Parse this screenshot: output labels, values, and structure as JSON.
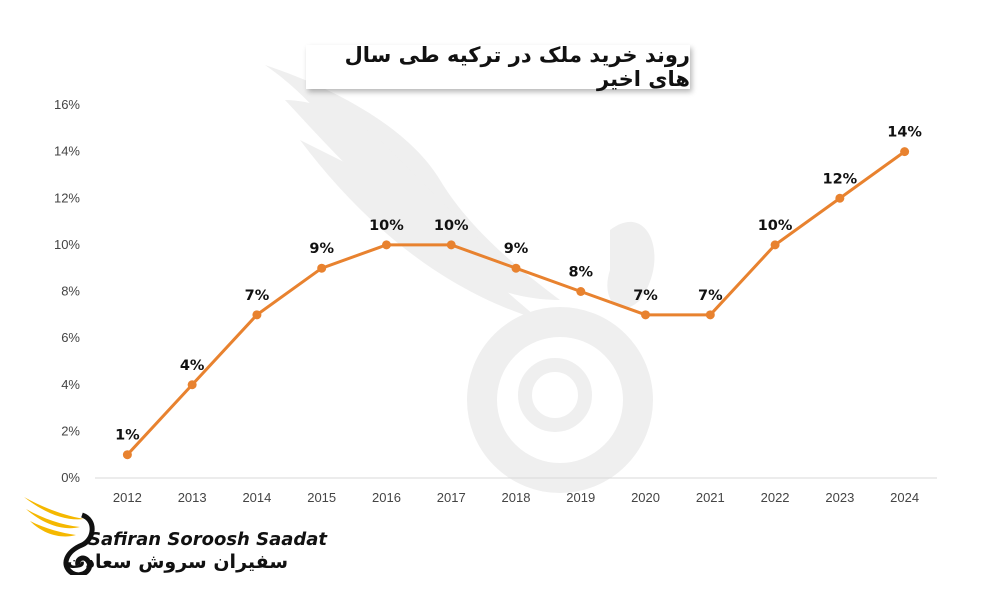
{
  "chart_data": {
    "type": "line",
    "title": "روند خرید ملک در ترکیه طی سال های اخیر",
    "categories": [
      "2012",
      "2013",
      "2014",
      "2015",
      "2016",
      "2017",
      "2018",
      "2019",
      "2020",
      "2021",
      "2022",
      "2023",
      "2024"
    ],
    "series": [
      {
        "values": [
          1,
          4,
          7,
          9,
          10,
          10,
          9,
          8,
          7,
          7,
          10,
          12,
          14
        ],
        "color": "#e8822f"
      }
    ],
    "data_labels": [
      "1%",
      "4%",
      "7%",
      "9%",
      "10%",
      "10%",
      "9%",
      "8%",
      "7%",
      "7%",
      "10%",
      "12%",
      "14%"
    ],
    "y_ticks": [
      "0%",
      "2%",
      "4%",
      "6%",
      "8%",
      "10%",
      "12%",
      "14%",
      "16%"
    ],
    "ylim": [
      0,
      16
    ],
    "xlabel": "",
    "ylabel": "",
    "grid": false,
    "axis_color": "#d9d9d9"
  },
  "logo": {
    "text_en": "Safiran Soroosh Saadat",
    "text_fa": "سفیران سروش سعادت",
    "wing_color": "#f5b800",
    "swirl_color": "#111111"
  },
  "watermark": {
    "icon": "swan-wing-logo",
    "color": "#efefef"
  }
}
